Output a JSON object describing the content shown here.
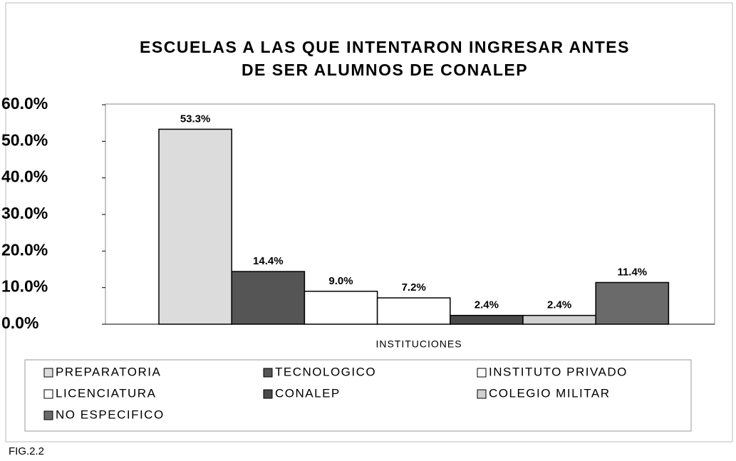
{
  "chart_data": {
    "type": "bar",
    "title": [
      "ESCUELAS A LAS  QUE INTENTARON INGRESAR ANTES",
      "DE SER ALUMNOS DE CONALEP"
    ],
    "x_label": "INSTITUCIONES",
    "annotation": "FIG.2.2",
    "ylim": [
      0,
      60
    ],
    "yticks": [
      {
        "value": 0,
        "label": "0.0%"
      },
      {
        "value": 10,
        "label": "10.0%"
      },
      {
        "value": 20,
        "label": "20.0%"
      },
      {
        "value": 30,
        "label": "30.0%"
      },
      {
        "value": 40,
        "label": "40.0%"
      },
      {
        "value": 50,
        "label": "50.0%"
      },
      {
        "value": 60,
        "label": "60.0%"
      }
    ],
    "series": [
      {
        "name": "PREPARATORIA",
        "color": "#dcdcdc",
        "values": [
          53.3
        ],
        "value_labels": [
          "53.3%"
        ]
      },
      {
        "name": "TECNOLOGICO",
        "color": "#555555",
        "values": [
          14.4
        ],
        "value_labels": [
          "14.4%"
        ]
      },
      {
        "name": "INSTITUTO PRIVADO",
        "color": "#ffffff",
        "values": [
          9.0
        ],
        "value_labels": [
          "9.0%"
        ]
      },
      {
        "name": "LICENCIATURA",
        "color": "#ffffff",
        "values": [
          7.2
        ],
        "value_labels": [
          "7.2%"
        ]
      },
      {
        "name": "CONALEP",
        "color": "#4a4a4a",
        "values": [
          2.4
        ],
        "value_labels": [
          "2.4%"
        ]
      },
      {
        "name": "COLEGIO MILITAR",
        "color": "#d0d0d0",
        "values": [
          2.4
        ],
        "value_labels": [
          "2.4%"
        ]
      },
      {
        "name": "NO ESPECIFICO",
        "color": "#6a6a6a",
        "values": [
          11.4
        ],
        "value_labels": [
          "11.4%"
        ]
      }
    ]
  }
}
